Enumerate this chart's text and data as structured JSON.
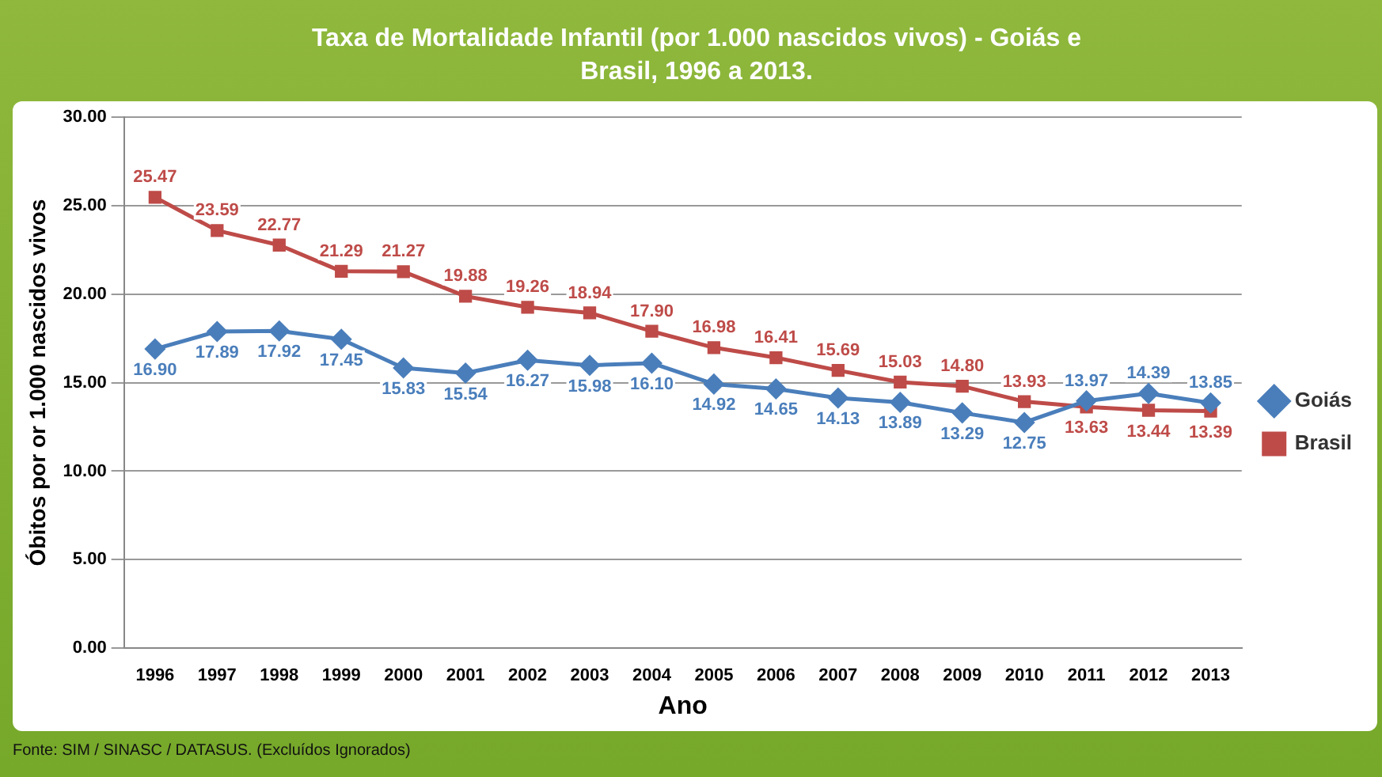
{
  "chart_data": {
    "type": "line",
    "title": "Taxa de Mortalidade Infantil (por 1.000 nascidos vivos) - Goiás e Brasil, 1996 a 2013.",
    "xlabel": "Ano",
    "ylabel": "Óbitos por or 1.000 nascidos vivos",
    "categories": [
      "1996",
      "1997",
      "1998",
      "1999",
      "2000",
      "2001",
      "2002",
      "2003",
      "2004",
      "2005",
      "2006",
      "2007",
      "2008",
      "2009",
      "2010",
      "2011",
      "2012",
      "2013"
    ],
    "series": [
      {
        "name": "Goiás",
        "color": "#4a7ebb",
        "marker": "diamond",
        "values": [
          16.9,
          17.89,
          17.92,
          17.45,
          15.83,
          15.54,
          16.27,
          15.98,
          16.1,
          14.92,
          14.65,
          14.13,
          13.89,
          13.29,
          12.75,
          13.97,
          14.39,
          13.85
        ],
        "value_labels": [
          "16.90",
          "17.89",
          "17.92",
          "17.45",
          "15.83",
          "15.54",
          "16.27",
          "15.98",
          "16.10",
          "14.92",
          "14.65",
          "14.13",
          "13.89",
          "13.29",
          "12.75",
          "13.97",
          "14.39",
          "13.85"
        ]
      },
      {
        "name": "Brasil",
        "color": "#be4b48",
        "marker": "square",
        "values": [
          25.47,
          23.59,
          22.77,
          21.29,
          21.27,
          19.88,
          19.26,
          18.94,
          17.9,
          16.98,
          16.41,
          15.69,
          15.03,
          14.8,
          13.93,
          13.63,
          13.44,
          13.39
        ],
        "value_labels": [
          "25.47",
          "23.59",
          "22.77",
          "21.29",
          "21.27",
          "19.88",
          "19.26",
          "18.94",
          "17.90",
          "16.98",
          "16.41",
          "15.69",
          "15.03",
          "14.80",
          "13.93",
          "13.63",
          "13.44",
          "13.39"
        ]
      }
    ],
    "ylim": [
      0,
      30
    ],
    "yticks": [
      {
        "value": 0,
        "label": "0.00"
      },
      {
        "value": 5,
        "label": "5.00"
      },
      {
        "value": 10,
        "label": "10.00"
      },
      {
        "value": 15,
        "label": "15.00"
      },
      {
        "value": 20,
        "label": "20.00"
      },
      {
        "value": 25,
        "label": "25.00"
      },
      {
        "value": 30,
        "label": "30.00"
      }
    ],
    "grid": "y",
    "legend": "right",
    "line_style": "solid",
    "annotations": [
      "Fonte: SIM / SINASC / DATASUS. (Excluídos Ignorados)"
    ]
  }
}
